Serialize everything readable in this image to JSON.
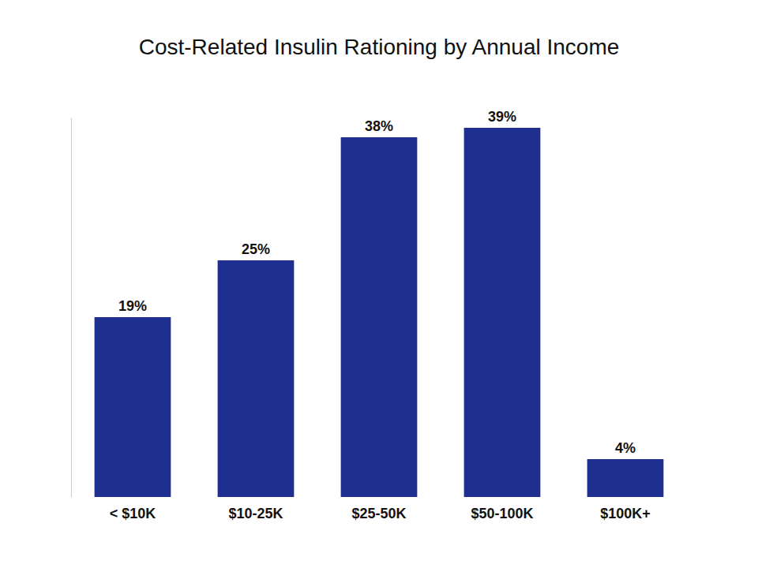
{
  "chart_data": {
    "type": "bar",
    "title": "Cost-Related Insulin Rationing by Annual Income",
    "categories": [
      "< $10K",
      "$10-25K",
      "$25-50K",
      "$50-100K",
      "$100K+"
    ],
    "values": [
      19,
      25,
      38,
      39,
      4
    ],
    "value_labels": [
      "19%",
      "25%",
      "38%",
      "39%",
      "4%"
    ],
    "color": "#1f2f8f",
    "ylim": [
      0,
      40
    ],
    "grid": false,
    "data_labels": true,
    "tick_labels": "x"
  }
}
